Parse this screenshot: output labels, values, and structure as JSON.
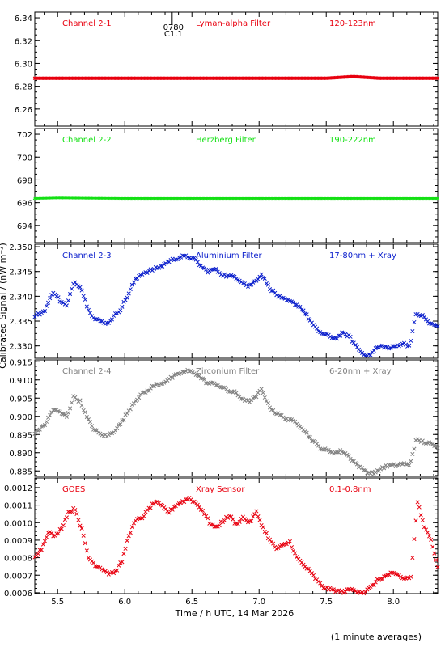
{
  "figure": {
    "ylabel": "Calibrated Signal / (nW m⁻²)",
    "xlabel": "Time / h UTC, 14 Mar 2026",
    "footnote": "(1 minute averages)",
    "marker": {
      "top_label": "0780",
      "bottom_label": "C1.1",
      "x": 6.35
    }
  },
  "chart_data": [
    {
      "type": "scatter",
      "name": "Channel 2-1",
      "filter": "Lyman-alpha Filter",
      "band": "120-123nm",
      "color": "#e8000f",
      "ylim": [
        6.245,
        6.345
      ],
      "yticks": [
        6.26,
        6.28,
        6.3,
        6.32,
        6.34
      ],
      "ytick_labels": [
        "6.26",
        "6.28",
        "6.30",
        "6.32",
        "6.34"
      ],
      "xlim": [
        5.33,
        8.33
      ],
      "x": [
        5.33,
        5.5,
        6.0,
        6.5,
        7.0,
        7.5,
        7.7,
        7.9,
        8.0,
        8.33
      ],
      "y": [
        6.287,
        6.287,
        6.287,
        6.287,
        6.287,
        6.287,
        6.2885,
        6.287,
        6.287,
        6.287
      ]
    },
    {
      "type": "scatter",
      "name": "Channel 2-2",
      "filter": "Herzberg Filter",
      "band": "190-222nm",
      "color": "#14e014",
      "ylim": [
        692.5,
        702.5
      ],
      "yticks": [
        694,
        696,
        698,
        700,
        702
      ],
      "ytick_labels": [
        "694",
        "696",
        "698",
        "700",
        "702"
      ],
      "xlim": [
        5.33,
        8.33
      ],
      "x": [
        5.33,
        5.5,
        6.0,
        6.5,
        7.0,
        7.5,
        8.0,
        8.33
      ],
      "y": [
        696.4,
        696.45,
        696.4,
        696.4,
        696.4,
        696.4,
        696.4,
        696.4
      ]
    },
    {
      "type": "scatter",
      "name": "Channel 2-3",
      "filter": "Aluminium Filter",
      "band": "17-80nm + Xray",
      "color": "#0a1ecc",
      "ylim": [
        2.3275,
        2.3505
      ],
      "yticks": [
        2.33,
        2.335,
        2.34,
        2.345,
        2.35
      ],
      "ytick_labels": [
        "2.330",
        "2.335",
        "2.340",
        "2.345",
        "2.350"
      ],
      "xlim": [
        5.33,
        8.33
      ],
      "x": [
        5.33,
        5.4,
        5.47,
        5.52,
        5.57,
        5.62,
        5.67,
        5.72,
        5.77,
        5.82,
        5.87,
        5.92,
        5.97,
        6.02,
        6.07,
        6.12,
        6.17,
        6.22,
        6.27,
        6.32,
        6.37,
        6.42,
        6.47,
        6.52,
        6.57,
        6.62,
        6.67,
        6.72,
        6.77,
        6.82,
        6.87,
        6.92,
        6.97,
        7.02,
        7.07,
        7.12,
        7.17,
        7.22,
        7.27,
        7.32,
        7.37,
        7.42,
        7.47,
        7.52,
        7.57,
        7.62,
        7.67,
        7.72,
        7.77,
        7.82,
        7.87,
        7.92,
        7.97,
        8.02,
        8.07,
        8.12,
        8.17,
        8.22,
        8.27,
        8.33
      ],
      "y": [
        2.336,
        2.337,
        2.341,
        2.339,
        2.338,
        2.343,
        2.342,
        2.338,
        2.3355,
        2.335,
        2.3345,
        2.336,
        2.3375,
        2.34,
        2.343,
        2.3445,
        2.345,
        2.3455,
        2.346,
        2.347,
        2.3475,
        2.348,
        2.348,
        2.3475,
        2.346,
        2.345,
        2.3455,
        2.3445,
        2.344,
        2.344,
        2.343,
        2.342,
        2.343,
        2.3445,
        2.342,
        2.3405,
        2.3395,
        2.339,
        2.3385,
        2.3375,
        2.3355,
        2.3335,
        2.3325,
        2.332,
        2.3315,
        2.3325,
        2.332,
        2.33,
        2.3285,
        2.328,
        2.3295,
        2.33,
        2.3295,
        2.33,
        2.3305,
        2.33,
        2.3365,
        2.336,
        2.3345,
        2.334
      ]
    },
    {
      "type": "scatter",
      "name": "Channel 2-4",
      "filter": "Zirconium Filter",
      "band": "6-20nm + Xray",
      "color": "#808080",
      "ylim": [
        0.8835,
        0.9155
      ],
      "yticks": [
        0.885,
        0.89,
        0.895,
        0.9,
        0.905,
        0.91,
        0.915
      ],
      "ytick_labels": [
        "0.885",
        "0.890",
        "0.895",
        "0.900",
        "0.905",
        "0.910",
        "0.915"
      ],
      "xlim": [
        5.33,
        8.33
      ],
      "x": [
        5.33,
        5.4,
        5.47,
        5.52,
        5.57,
        5.62,
        5.67,
        5.72,
        5.77,
        5.82,
        5.87,
        5.92,
        5.97,
        6.02,
        6.07,
        6.12,
        6.17,
        6.22,
        6.27,
        6.32,
        6.37,
        6.42,
        6.47,
        6.52,
        6.57,
        6.62,
        6.67,
        6.72,
        6.77,
        6.82,
        6.87,
        6.92,
        6.97,
        7.02,
        7.07,
        7.12,
        7.17,
        7.22,
        7.27,
        7.32,
        7.37,
        7.42,
        7.47,
        7.52,
        7.57,
        7.62,
        7.67,
        7.72,
        7.77,
        7.82,
        7.87,
        7.92,
        7.97,
        8.02,
        8.07,
        8.12,
        8.17,
        8.22,
        8.27,
        8.33
      ],
      "y": [
        0.8955,
        0.8975,
        0.902,
        0.901,
        0.9,
        0.9055,
        0.904,
        0.8995,
        0.8965,
        0.895,
        0.8945,
        0.896,
        0.898,
        0.901,
        0.904,
        0.906,
        0.907,
        0.9085,
        0.909,
        0.91,
        0.911,
        0.912,
        0.9125,
        0.912,
        0.9105,
        0.909,
        0.909,
        0.908,
        0.907,
        0.9065,
        0.905,
        0.904,
        0.905,
        0.9075,
        0.903,
        0.901,
        0.9,
        0.899,
        0.8985,
        0.897,
        0.8945,
        0.8925,
        0.891,
        0.8905,
        0.89,
        0.8905,
        0.889,
        0.887,
        0.8855,
        0.8845,
        0.8845,
        0.886,
        0.8865,
        0.8865,
        0.887,
        0.8865,
        0.8935,
        0.893,
        0.8925,
        0.8915
      ]
    },
    {
      "type": "scatter",
      "name": "GOES",
      "filter": "Xray Sensor",
      "band": "0.1-0.8nm",
      "color": "#e8000f",
      "ylim": [
        0.000595,
        0.001255
      ],
      "yticks": [
        0.0006,
        0.0007,
        0.0008,
        0.0009,
        0.001,
        0.0011,
        0.0012
      ],
      "ytick_labels": [
        "0.0006",
        "0.0007",
        "0.0008",
        "0.0009",
        "0.0010",
        "0.0011",
        "0.0012"
      ],
      "xlim": [
        5.33,
        8.33
      ],
      "x": [
        5.33,
        5.38,
        5.43,
        5.48,
        5.53,
        5.58,
        5.63,
        5.68,
        5.73,
        5.78,
        5.83,
        5.88,
        5.93,
        5.98,
        6.03,
        6.08,
        6.13,
        6.18,
        6.23,
        6.28,
        6.33,
        6.38,
        6.43,
        6.48,
        6.53,
        6.58,
        6.63,
        6.68,
        6.73,
        6.78,
        6.83,
        6.88,
        6.93,
        6.98,
        7.03,
        7.08,
        7.13,
        7.18,
        7.23,
        7.28,
        7.33,
        7.38,
        7.43,
        7.48,
        7.53,
        7.58,
        7.63,
        7.68,
        7.73,
        7.78,
        7.83,
        7.88,
        7.93,
        7.98,
        8.03,
        8.08,
        8.13,
        8.18,
        8.23,
        8.28,
        8.33
      ],
      "y": [
        0.00081,
        0.00085,
        0.00095,
        0.00092,
        0.00097,
        0.00106,
        0.00108,
        0.00096,
        0.0008,
        0.00076,
        0.00074,
        0.00071,
        0.00072,
        0.00078,
        0.00093,
        0.00101,
        0.00103,
        0.00108,
        0.00112,
        0.00109,
        0.00106,
        0.0011,
        0.00112,
        0.00114,
        0.00111,
        0.00107,
        0.001,
        0.00097,
        0.00101,
        0.00104,
        0.00099,
        0.00103,
        0.001,
        0.00106,
        0.00097,
        0.0009,
        0.00085,
        0.00087,
        0.00089,
        0.0008,
        0.00076,
        0.00072,
        0.00067,
        0.00063,
        0.00062,
        0.00061,
        0.000605,
        0.00062,
        0.00061,
        0.0006,
        0.00063,
        0.00067,
        0.00069,
        0.00071,
        0.0007,
        0.00068,
        0.00069,
        0.00112,
        0.00097,
        0.00091,
        0.00075
      ]
    }
  ],
  "x_axis": {
    "ticks": [
      5.5,
      6.0,
      6.5,
      7.0,
      7.5,
      8.0
    ],
    "tick_labels": [
      "5.5",
      "6.0",
      "6.5",
      "7.0",
      "7.5",
      "8.0"
    ]
  }
}
